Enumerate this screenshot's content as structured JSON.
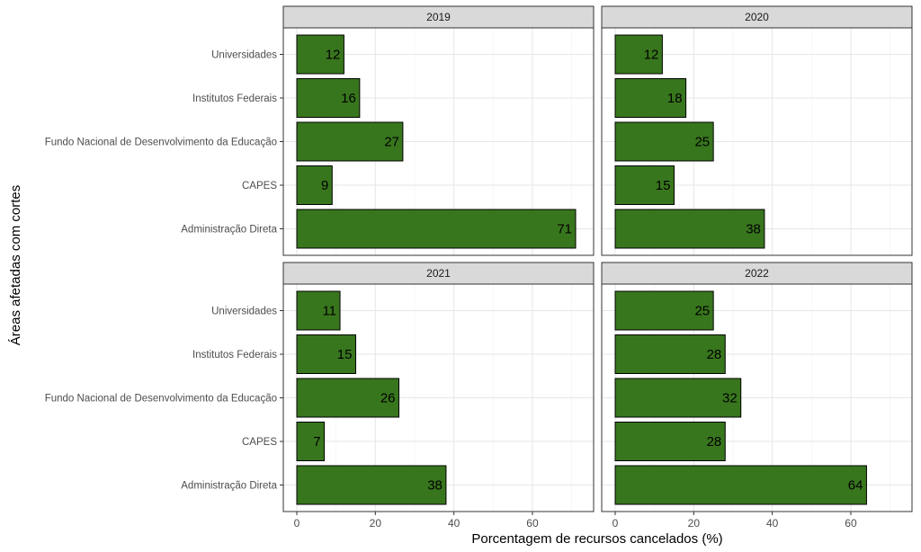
{
  "chart_data": {
    "type": "bar",
    "orientation": "horizontal",
    "xlabel": "Porcentagem de recursos cancelados (%)",
    "ylabel": "Áreas afetadas com cortes",
    "xlim": [
      0,
      75
    ],
    "xticks": [
      "0",
      "20",
      "40",
      "60"
    ],
    "grid": true,
    "bar_color": "#38761d",
    "categories": [
      "Universidades",
      "Institutos Federais",
      "Fundo Nacional de Desenvolvimento da Educação",
      "CAPES",
      "Administração Direta"
    ],
    "panels": [
      {
        "facet": "2019",
        "values": [
          12,
          16,
          27,
          9,
          71
        ]
      },
      {
        "facet": "2020",
        "values": [
          12,
          18,
          25,
          15,
          38
        ]
      },
      {
        "facet": "2021",
        "values": [
          11,
          15,
          26,
          7,
          38
        ]
      },
      {
        "facet": "2022",
        "values": [
          25,
          28,
          32,
          28,
          64
        ]
      }
    ]
  }
}
